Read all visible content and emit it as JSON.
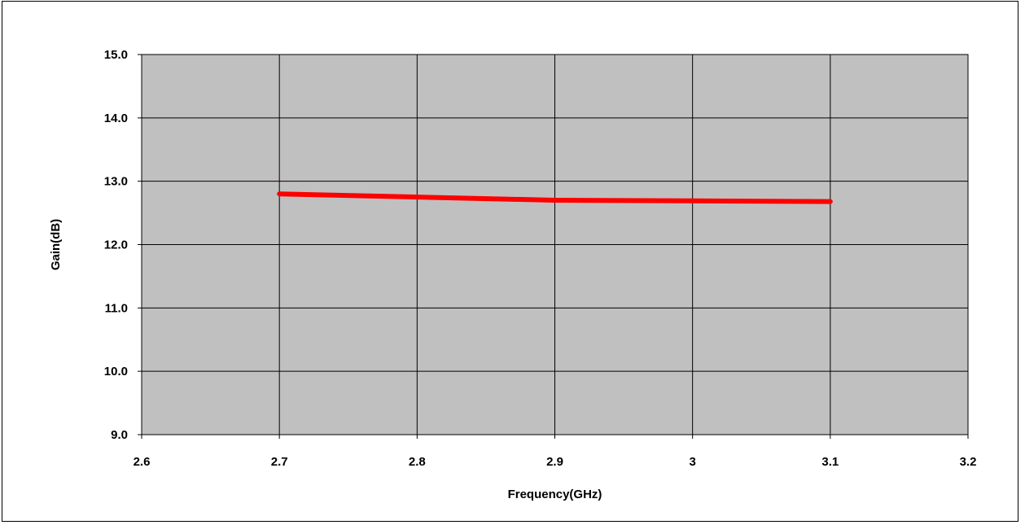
{
  "chart_data": {
    "type": "line",
    "title": "",
    "xlabel": "Frequency(GHz)",
    "ylabel": "Gain(dB)",
    "xlim": [
      2.6,
      3.2
    ],
    "ylim": [
      9.0,
      15.0
    ],
    "x_ticks": [
      "2.6",
      "2.7",
      "2.8",
      "2.9",
      "3",
      "3.1",
      "3.2"
    ],
    "y_ticks": [
      "9.0",
      "10.0",
      "11.0",
      "12.0",
      "13.0",
      "14.0",
      "15.0"
    ],
    "grid": true,
    "legend": "none",
    "series": [
      {
        "x": [
          2.7,
          2.8,
          2.9,
          3.0,
          3.1
        ],
        "y": [
          12.8,
          12.75,
          12.7,
          12.69,
          12.68
        ]
      }
    ],
    "colors": {
      "plot_background": "#c0c0c0",
      "gridline": "#000000",
      "series": "#ff0000"
    }
  }
}
